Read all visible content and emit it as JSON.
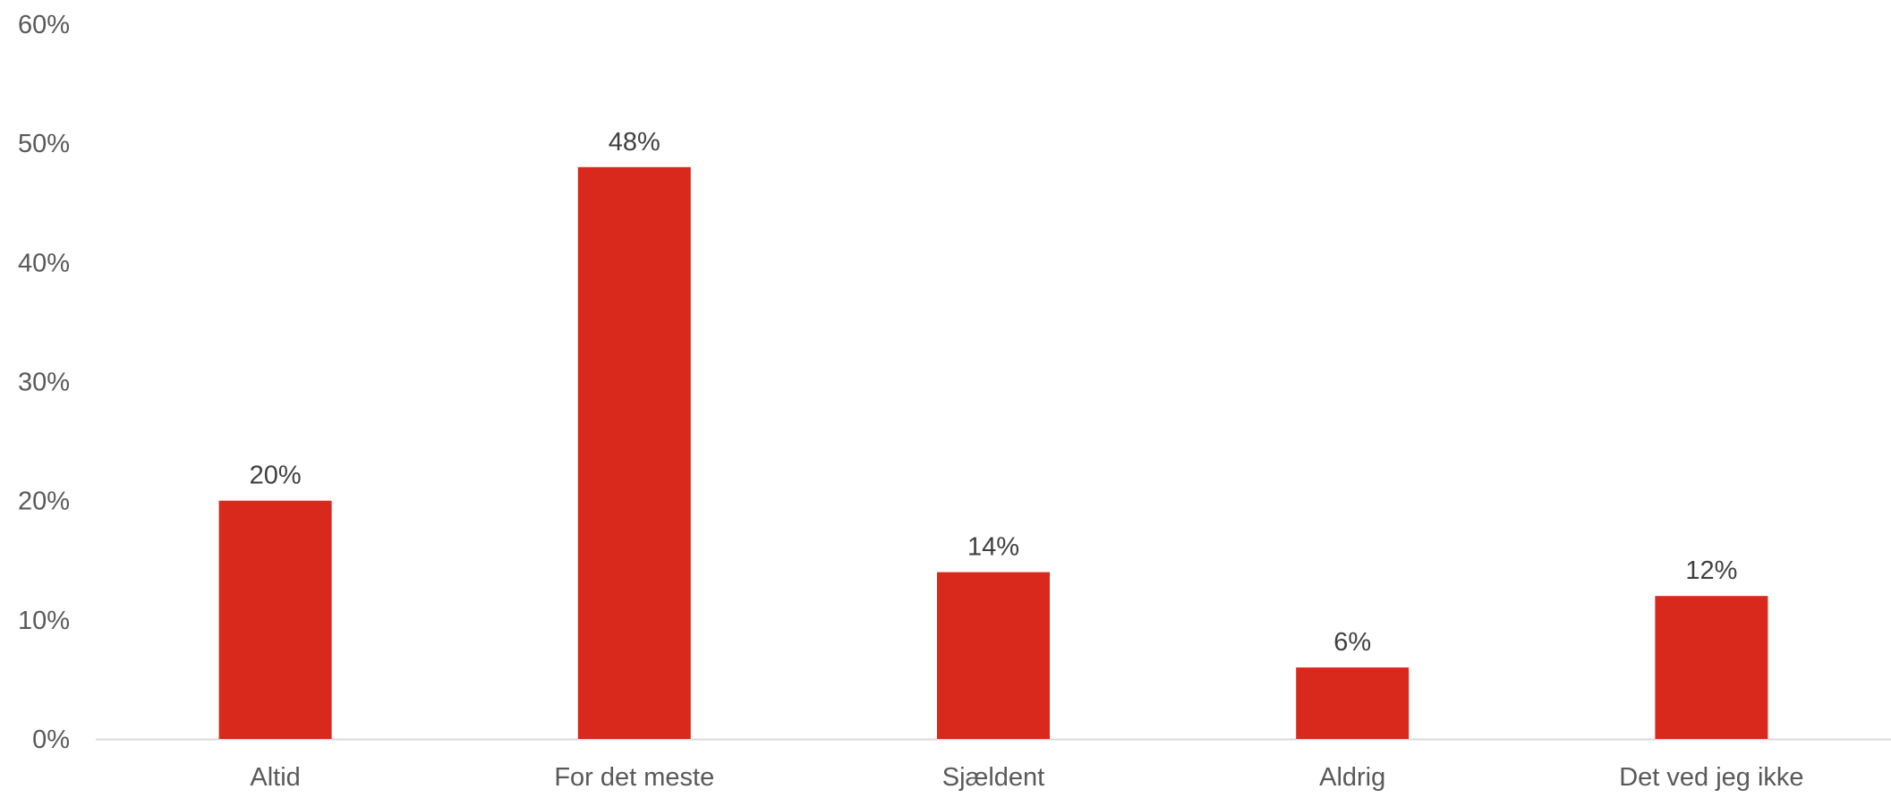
{
  "chart_data": {
    "type": "bar",
    "categories": [
      "Altid",
      "For det meste",
      "Sjældent",
      "Aldrig",
      "Det ved jeg ikke"
    ],
    "values": [
      20,
      48,
      14,
      6,
      12
    ],
    "data_labels": [
      "20%",
      "48%",
      "14%",
      "6%",
      "12%"
    ],
    "ylim": [
      0,
      60
    ],
    "y_ticks": [
      0,
      10,
      20,
      30,
      40,
      50,
      60
    ],
    "y_tick_labels": [
      "0%",
      "10%",
      "20%",
      "30%",
      "40%",
      "50%",
      "60%"
    ],
    "grid": false,
    "legend": false,
    "colors": {
      "bar": "#D9291C",
      "axis_line": "#D9D9D9",
      "text": "#404040"
    }
  }
}
